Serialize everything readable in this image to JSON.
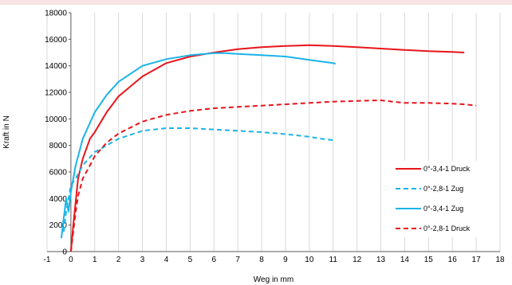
{
  "chart_data": {
    "type": "line",
    "xlabel": "Weg in mm",
    "ylabel": "Kraft in N",
    "xlim": [
      -1,
      18
    ],
    "ylim": [
      0,
      18000
    ],
    "x_ticks": [
      "-1",
      "0",
      "1",
      "2",
      "3",
      "4",
      "5",
      "6",
      "7",
      "8",
      "9",
      "10",
      "11",
      "12",
      "13",
      "14",
      "15",
      "16",
      "17",
      "18"
    ],
    "y_ticks": [
      "0",
      "2000",
      "4000",
      "6000",
      "8000",
      "10000",
      "12000",
      "14000",
      "16000",
      "18000"
    ],
    "grid": "vertical",
    "legend_position": "bottom-right",
    "series": [
      {
        "name": "0°-3,4-1 Druck",
        "color": "#e8141b",
        "dash": "solid",
        "x": [
          0,
          0.1,
          0.3,
          0.5,
          0.8,
          1,
          1.5,
          2,
          3,
          4,
          5,
          6,
          7,
          8,
          9,
          10,
          11,
          12,
          13,
          14,
          15,
          16,
          16.5
        ],
        "y": [
          0,
          2000,
          5500,
          7000,
          8500,
          9000,
          10500,
          11700,
          13200,
          14200,
          14700,
          15000,
          15250,
          15400,
          15500,
          15550,
          15500,
          15400,
          15300,
          15200,
          15100,
          15050,
          15000
        ]
      },
      {
        "name": "0°-2,8-1 Zug",
        "color": "#1ab4e8",
        "dash": "dashed",
        "x": [
          -0.3,
          -0.2,
          -0.1,
          0,
          0.2,
          0.5,
          1,
          2,
          3,
          4,
          5,
          6,
          7,
          8,
          9,
          10,
          10.5,
          11,
          11.1
        ],
        "y": [
          1500,
          3000,
          4000,
          5000,
          5500,
          6500,
          7500,
          8500,
          9100,
          9300,
          9300,
          9200,
          9100,
          9000,
          8850,
          8650,
          8500,
          8400,
          8300
        ]
      },
      {
        "name": "0°-3,4-1 Zug",
        "color": "#1ab4e8",
        "dash": "solid",
        "x": [
          -0.4,
          -0.3,
          -0.2,
          -0.1,
          0,
          0.2,
          0.5,
          1,
          1.5,
          2,
          3,
          4,
          5,
          6,
          6.5,
          7,
          8,
          9,
          10,
          11,
          11.1
        ],
        "y": [
          1000,
          2500,
          4000,
          3000,
          4500,
          6500,
          8500,
          10500,
          11800,
          12800,
          14000,
          14500,
          14800,
          14950,
          14950,
          14900,
          14800,
          14700,
          14450,
          14200,
          14150
        ]
      },
      {
        "name": "0°-2,8-1 Druck",
        "color": "#e8141b",
        "dash": "dashed",
        "x": [
          0,
          0.1,
          0.2,
          0.3,
          0.5,
          0.8,
          1,
          1.5,
          2,
          3,
          4,
          5,
          6,
          7,
          8,
          9,
          10,
          11,
          12,
          13,
          13.5,
          14,
          15,
          16,
          16.5,
          17
        ],
        "y": [
          0,
          1500,
          3000,
          4200,
          5500,
          6500,
          7200,
          8200,
          8900,
          9800,
          10300,
          10600,
          10800,
          10900,
          11000,
          11100,
          11200,
          11300,
          11350,
          11400,
          11300,
          11200,
          11200,
          11150,
          11100,
          11000
        ]
      }
    ]
  }
}
